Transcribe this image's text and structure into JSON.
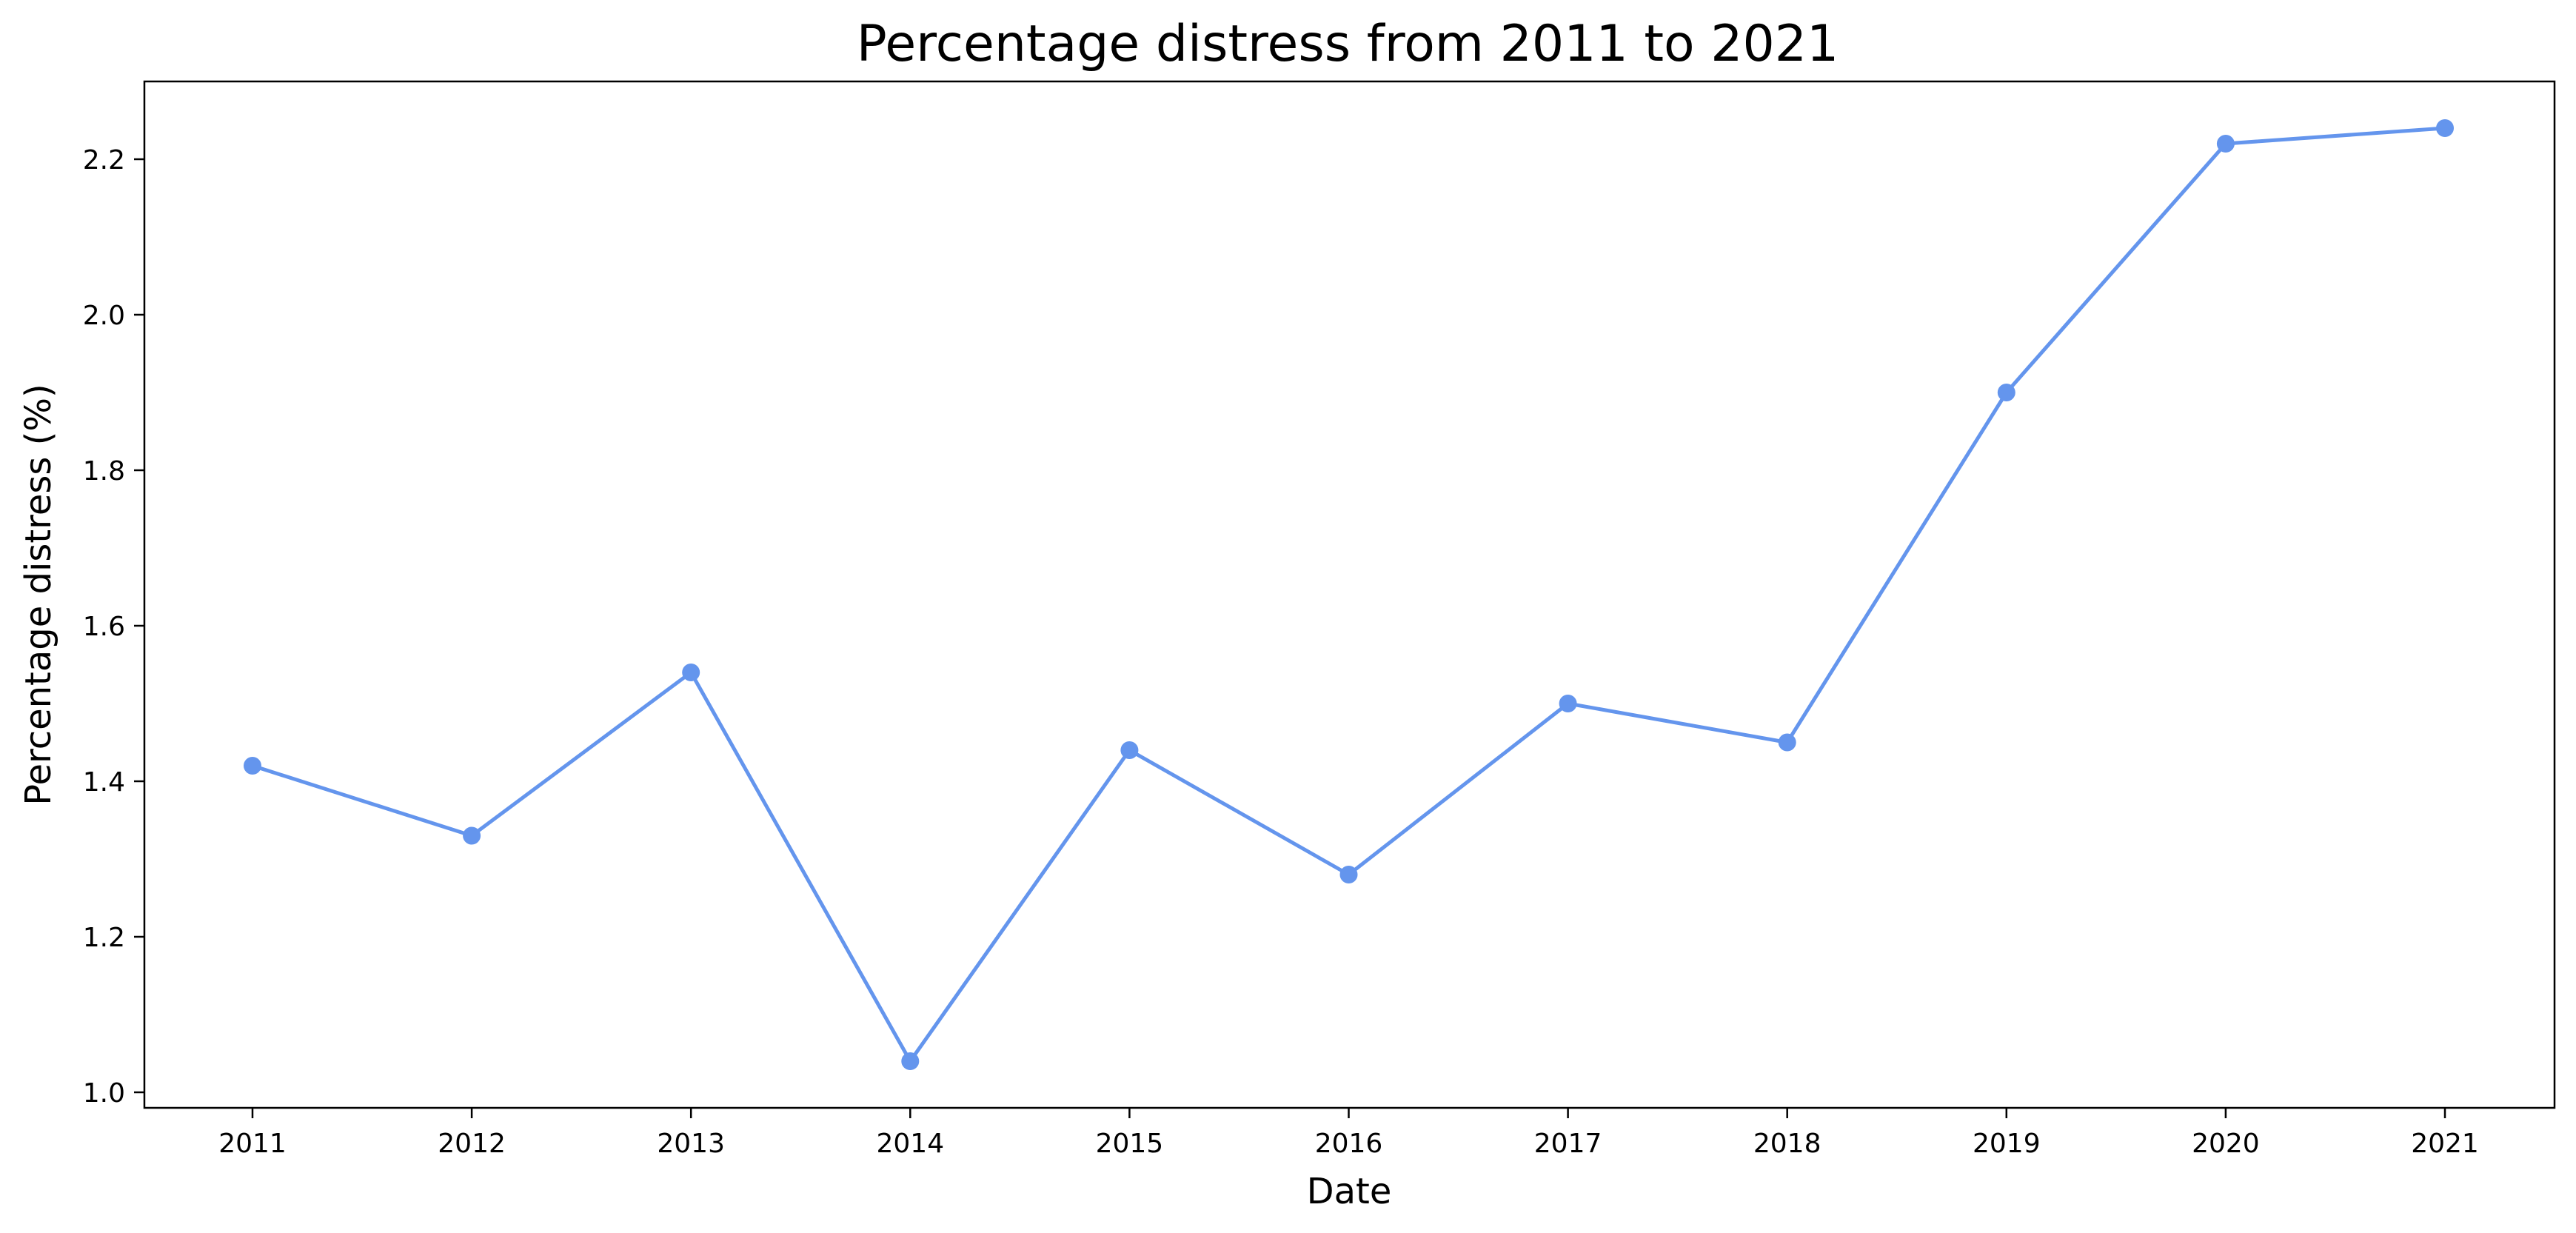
{
  "chart_data": {
    "type": "line",
    "title": "Percentage distress from 2011 to 2021",
    "xlabel": "Date",
    "ylabel": "Percentage distress (%)",
    "categories": [
      "2011",
      "2012",
      "2013",
      "2014",
      "2015",
      "2016",
      "2017",
      "2018",
      "2019",
      "2020",
      "2021"
    ],
    "series": [
      {
        "values": [
          1.42,
          1.33,
          1.54,
          1.04,
          1.44,
          1.28,
          1.5,
          1.45,
          1.9,
          2.22,
          2.24
        ]
      }
    ],
    "yticks": [
      "1.0",
      "1.2",
      "1.4",
      "1.6",
      "1.8",
      "2.0",
      "2.2"
    ],
    "ylim": [
      0.98,
      2.3
    ],
    "grid": false,
    "legend": "none",
    "colors": {
      "line": "#6495ED",
      "axis": "#000000",
      "background": "#ffffff"
    }
  }
}
